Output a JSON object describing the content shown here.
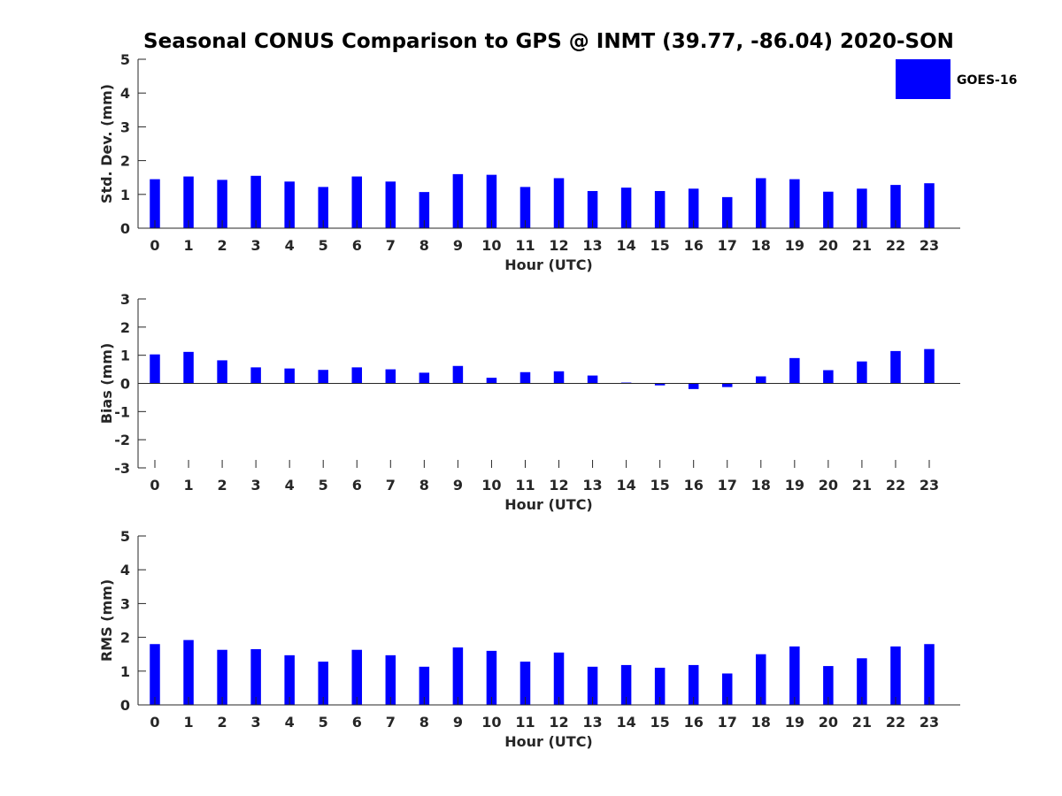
{
  "title": "Seasonal CONUS Comparison to GPS @ INMT (39.77, -86.04) 2020-SON",
  "legend": {
    "label": "GOES-16",
    "color": "#0000ff"
  },
  "chart_data": [
    {
      "type": "bar",
      "xlabel": "Hour (UTC)",
      "ylabel": "Std. Dev. (mm)",
      "ylim": [
        0,
        5
      ],
      "yticks": [
        "0",
        "1",
        "2",
        "3",
        "4",
        "5"
      ],
      "categories": [
        "0",
        "1",
        "2",
        "3",
        "4",
        "5",
        "6",
        "7",
        "8",
        "9",
        "10",
        "11",
        "12",
        "13",
        "14",
        "15",
        "16",
        "17",
        "18",
        "19",
        "20",
        "21",
        "22",
        "23"
      ],
      "series": [
        {
          "name": "GOES-16",
          "color": "#0000ff",
          "values": [
            1.45,
            1.53,
            1.43,
            1.55,
            1.38,
            1.22,
            1.53,
            1.38,
            1.07,
            1.6,
            1.58,
            1.22,
            1.48,
            1.1,
            1.2,
            1.1,
            1.17,
            0.92,
            1.48,
            1.45,
            1.08,
            1.17,
            1.28,
            1.33
          ]
        }
      ],
      "grid": false
    },
    {
      "type": "bar",
      "xlabel": "Hour (UTC)",
      "ylabel": "Bias (mm)",
      "ylim": [
        -3,
        3
      ],
      "yticks": [
        "-3",
        "-2",
        "-1",
        "0",
        "1",
        "2",
        "3"
      ],
      "categories": [
        "0",
        "1",
        "2",
        "3",
        "4",
        "5",
        "6",
        "7",
        "8",
        "9",
        "10",
        "11",
        "12",
        "13",
        "14",
        "15",
        "16",
        "17",
        "18",
        "19",
        "20",
        "21",
        "22",
        "23"
      ],
      "series": [
        {
          "name": "GOES-16",
          "color": "#0000ff",
          "values": [
            1.03,
            1.12,
            0.82,
            0.57,
            0.53,
            0.48,
            0.57,
            0.5,
            0.38,
            0.62,
            0.2,
            0.4,
            0.43,
            0.28,
            0.03,
            -0.07,
            -0.2,
            -0.13,
            0.25,
            0.9,
            0.47,
            0.78,
            1.15,
            1.22
          ]
        }
      ],
      "grid": false
    },
    {
      "type": "bar",
      "xlabel": "Hour (UTC)",
      "ylabel": "RMS (mm)",
      "ylim": [
        0,
        5
      ],
      "yticks": [
        "0",
        "1",
        "2",
        "3",
        "4",
        "5"
      ],
      "categories": [
        "0",
        "1",
        "2",
        "3",
        "4",
        "5",
        "6",
        "7",
        "8",
        "9",
        "10",
        "11",
        "12",
        "13",
        "14",
        "15",
        "16",
        "17",
        "18",
        "19",
        "20",
        "21",
        "22",
        "23"
      ],
      "series": [
        {
          "name": "GOES-16",
          "color": "#0000ff",
          "values": [
            1.8,
            1.92,
            1.63,
            1.65,
            1.47,
            1.28,
            1.63,
            1.47,
            1.13,
            1.7,
            1.6,
            1.28,
            1.55,
            1.13,
            1.18,
            1.1,
            1.18,
            0.93,
            1.5,
            1.73,
            1.15,
            1.38,
            1.73,
            1.8
          ]
        }
      ],
      "grid": false
    }
  ]
}
